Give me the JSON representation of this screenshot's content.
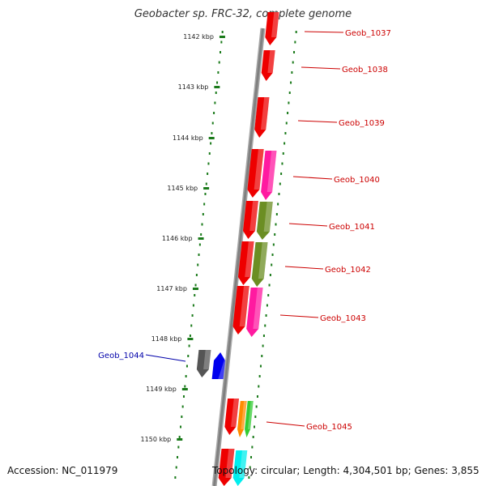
{
  "title": "Geobacter sp. FRC-32, complete genome",
  "footer": {
    "accession": "Accession: NC_011979",
    "topology": "Topology: circular; Length: 4,304,501 bp; Genes: 3,855"
  },
  "colors": {
    "backbone": "#808080",
    "tick_track": "#1a7a1a",
    "label_strand_right": "#cc0000",
    "label_strand_left": "#0000aa"
  },
  "kbp_ticks": [
    "1142 kbp",
    "1143 kbp",
    "1144 kbp",
    "1145 kbp",
    "1146 kbp",
    "1147 kbp",
    "1148 kbp",
    "1149 kbp",
    "1150 kbp"
  ],
  "genes": [
    {
      "name": "Geob_1037",
      "strand": "right",
      "color": "#ee0000"
    },
    {
      "name": "Geob_1038",
      "strand": "right",
      "color": "#ee0000"
    },
    {
      "name": "Geob_1039",
      "strand": "right",
      "color": "#ee0000"
    },
    {
      "name": "Geob_1040",
      "strand": "right",
      "color": "#ee0000"
    },
    {
      "name": "Geob_1041",
      "strand": "right",
      "color": "#ee0000"
    },
    {
      "name": "Geob_1042",
      "strand": "right",
      "color": "#ee0000"
    },
    {
      "name": "Geob_1043",
      "strand": "right",
      "color": "#ee0000"
    },
    {
      "name": "Geob_1044",
      "strand": "left",
      "color": "#0000ee"
    },
    {
      "name": "Geob_1045",
      "strand": "right",
      "color": "#ee0000"
    }
  ],
  "block_colors": {
    "red": "#ee0000",
    "magenta": "#ff1aa0",
    "olive": "#6b8e23",
    "gray": "#555555",
    "blue": "#0000ee",
    "orange": "#ff8c00",
    "green": "#33cc33",
    "cyan": "#00eeee"
  }
}
